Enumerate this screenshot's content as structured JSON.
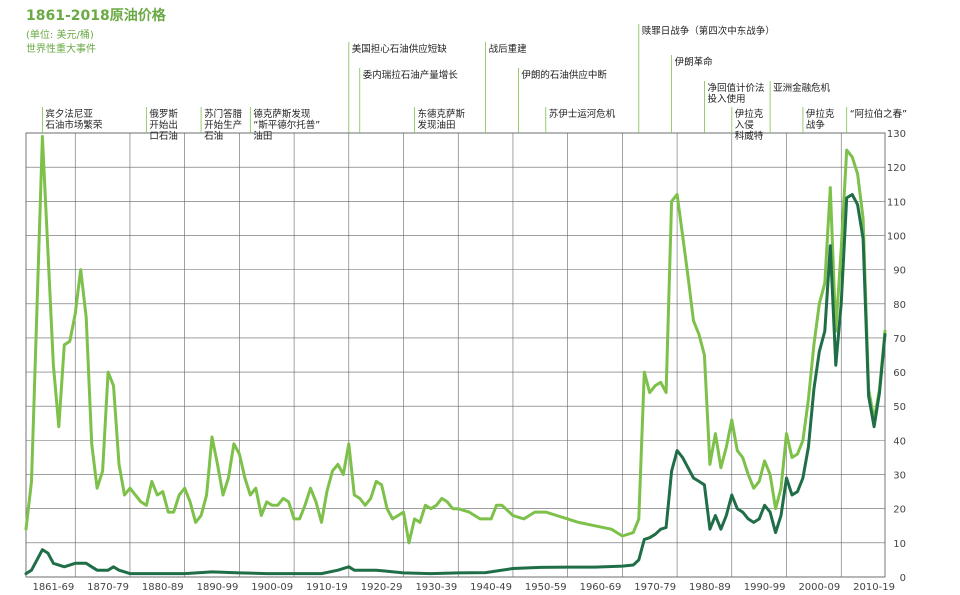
{
  "chart_data": {
    "type": "line",
    "title": "1861-2018原油价格",
    "unit_label": "(单位: 美元/桶)",
    "events_label": "世界性重大事件",
    "xlim": [
      1861,
      2018
    ],
    "ylim": [
      0,
      130
    ],
    "y_ticks": [
      0,
      10,
      20,
      30,
      40,
      50,
      60,
      70,
      80,
      90,
      100,
      110,
      120,
      130
    ],
    "x_tick_labels": [
      "1861-69",
      "1870-79",
      "1880-89",
      "1890-99",
      "1900-09",
      "1910-19",
      "1920-29",
      "1930-39",
      "1940-49",
      "1950-59",
      "1960-69",
      "1970-79",
      "1980-89",
      "1990-99",
      "2000-09",
      "2010-19"
    ],
    "x_tick_positions": [
      1866,
      1876,
      1886,
      1896,
      1906,
      1916,
      1926,
      1936,
      1946,
      1956,
      1966,
      1976,
      1986,
      1996,
      2006,
      2016
    ],
    "grid": true,
    "series": [
      {
        "color": "#7dc14a",
        "values": [
          [
            1861,
            14
          ],
          [
            1862,
            28
          ],
          [
            1864,
            129
          ],
          [
            1866,
            62
          ],
          [
            1867,
            44
          ],
          [
            1868,
            68
          ],
          [
            1869,
            69
          ],
          [
            1870,
            77
          ],
          [
            1871,
            90
          ],
          [
            1872,
            76
          ],
          [
            1873,
            39
          ],
          [
            1874,
            26
          ],
          [
            1875,
            31
          ],
          [
            1876,
            60
          ],
          [
            1877,
            56
          ],
          [
            1878,
            33
          ],
          [
            1879,
            24
          ],
          [
            1880,
            26
          ],
          [
            1882,
            22
          ],
          [
            1883,
            21
          ],
          [
            1884,
            28
          ],
          [
            1885,
            24
          ],
          [
            1886,
            25
          ],
          [
            1887,
            19
          ],
          [
            1888,
            19
          ],
          [
            1889,
            24
          ],
          [
            1890,
            26
          ],
          [
            1891,
            22
          ],
          [
            1892,
            16
          ],
          [
            1893,
            18
          ],
          [
            1894,
            24
          ],
          [
            1895,
            41
          ],
          [
            1896,
            33
          ],
          [
            1897,
            24
          ],
          [
            1898,
            29
          ],
          [
            1899,
            39
          ],
          [
            1900,
            36
          ],
          [
            1901,
            29
          ],
          [
            1902,
            24
          ],
          [
            1903,
            26
          ],
          [
            1904,
            18
          ],
          [
            1905,
            22
          ],
          [
            1906,
            21
          ],
          [
            1907,
            21
          ],
          [
            1908,
            23
          ],
          [
            1909,
            22
          ],
          [
            1910,
            17
          ],
          [
            1911,
            17
          ],
          [
            1912,
            21
          ],
          [
            1913,
            26
          ],
          [
            1914,
            22
          ],
          [
            1915,
            16
          ],
          [
            1916,
            25
          ],
          [
            1917,
            31
          ],
          [
            1918,
            33
          ],
          [
            1919,
            30
          ],
          [
            1920,
            39
          ],
          [
            1921,
            24
          ],
          [
            1922,
            23
          ],
          [
            1923,
            21
          ],
          [
            1924,
            23
          ],
          [
            1925,
            28
          ],
          [
            1926,
            27
          ],
          [
            1927,
            20
          ],
          [
            1928,
            17
          ],
          [
            1929,
            18
          ],
          [
            1930,
            19
          ],
          [
            1931,
            10
          ],
          [
            1932,
            17
          ],
          [
            1933,
            16
          ],
          [
            1934,
            21
          ],
          [
            1935,
            20
          ],
          [
            1936,
            21
          ],
          [
            1937,
            23
          ],
          [
            1938,
            22
          ],
          [
            1939,
            20
          ],
          [
            1940,
            20
          ],
          [
            1942,
            19
          ],
          [
            1944,
            17
          ],
          [
            1945,
            17
          ],
          [
            1946,
            17
          ],
          [
            1947,
            21
          ],
          [
            1948,
            21
          ],
          [
            1950,
            18
          ],
          [
            1952,
            17
          ],
          [
            1954,
            19
          ],
          [
            1956,
            19
          ],
          [
            1958,
            18
          ],
          [
            1960,
            17
          ],
          [
            1962,
            16
          ],
          [
            1965,
            15
          ],
          [
            1968,
            14
          ],
          [
            1970,
            12
          ],
          [
            1972,
            13
          ],
          [
            1973,
            17
          ],
          [
            1974,
            60
          ],
          [
            1975,
            54
          ],
          [
            1976,
            56
          ],
          [
            1977,
            57
          ],
          [
            1978,
            54
          ],
          [
            1979,
            110
          ],
          [
            1980,
            112
          ],
          [
            1981,
            100
          ],
          [
            1982,
            88
          ],
          [
            1983,
            75
          ],
          [
            1984,
            71
          ],
          [
            1985,
            65
          ],
          [
            1986,
            33
          ],
          [
            1987,
            42
          ],
          [
            1988,
            32
          ],
          [
            1989,
            38
          ],
          [
            1990,
            46
          ],
          [
            1991,
            37
          ],
          [
            1992,
            35
          ],
          [
            1993,
            30
          ],
          [
            1994,
            26
          ],
          [
            1995,
            28
          ],
          [
            1996,
            34
          ],
          [
            1997,
            30
          ],
          [
            1998,
            20
          ],
          [
            1999,
            26
          ],
          [
            2000,
            42
          ],
          [
            2001,
            35
          ],
          [
            2002,
            36
          ],
          [
            2003,
            40
          ],
          [
            2004,
            52
          ],
          [
            2005,
            68
          ],
          [
            2006,
            80
          ],
          [
            2007,
            86
          ],
          [
            2008,
            114
          ],
          [
            2009,
            72
          ],
          [
            2010,
            96
          ],
          [
            2011,
            125
          ],
          [
            2012,
            123
          ],
          [
            2013,
            118
          ],
          [
            2014,
            105
          ],
          [
            2015,
            55
          ],
          [
            2016,
            46
          ],
          [
            2017,
            55
          ],
          [
            2018,
            72
          ]
        ]
      },
      {
        "color": "#1f6e47",
        "values": [
          [
            1861,
            1
          ],
          [
            1862,
            2
          ],
          [
            1864,
            8
          ],
          [
            1865,
            7
          ],
          [
            1866,
            4
          ],
          [
            1868,
            3
          ],
          [
            1870,
            4
          ],
          [
            1872,
            4
          ],
          [
            1873,
            3
          ],
          [
            1874,
            2
          ],
          [
            1876,
            2
          ],
          [
            1877,
            3
          ],
          [
            1878,
            2
          ],
          [
            1880,
            1
          ],
          [
            1885,
            1
          ],
          [
            1890,
            1
          ],
          [
            1895,
            1.5
          ],
          [
            1900,
            1.2
          ],
          [
            1905,
            1
          ],
          [
            1910,
            1
          ],
          [
            1915,
            1
          ],
          [
            1918,
            2
          ],
          [
            1920,
            3
          ],
          [
            1921,
            2
          ],
          [
            1925,
            2
          ],
          [
            1930,
            1.2
          ],
          [
            1935,
            1
          ],
          [
            1940,
            1.2
          ],
          [
            1945,
            1.3
          ],
          [
            1950,
            2.5
          ],
          [
            1955,
            2.8
          ],
          [
            1960,
            2.9
          ],
          [
            1965,
            2.9
          ],
          [
            1970,
            3.2
          ],
          [
            1972,
            3.5
          ],
          [
            1973,
            5
          ],
          [
            1974,
            11
          ],
          [
            1975,
            11.5
          ],
          [
            1976,
            12.5
          ],
          [
            1977,
            14
          ],
          [
            1978,
            14.5
          ],
          [
            1979,
            31
          ],
          [
            1980,
            37
          ],
          [
            1981,
            35
          ],
          [
            1982,
            32
          ],
          [
            1983,
            29
          ],
          [
            1984,
            28
          ],
          [
            1985,
            27
          ],
          [
            1986,
            14
          ],
          [
            1987,
            18
          ],
          [
            1988,
            14
          ],
          [
            1989,
            18
          ],
          [
            1990,
            24
          ],
          [
            1991,
            20
          ],
          [
            1992,
            19
          ],
          [
            1993,
            17
          ],
          [
            1994,
            16
          ],
          [
            1995,
            17
          ],
          [
            1996,
            21
          ],
          [
            1997,
            19
          ],
          [
            1998,
            13
          ],
          [
            1999,
            18
          ],
          [
            2000,
            29
          ],
          [
            2001,
            24
          ],
          [
            2002,
            25
          ],
          [
            2003,
            29
          ],
          [
            2004,
            38
          ],
          [
            2005,
            55
          ],
          [
            2006,
            66
          ],
          [
            2007,
            72
          ],
          [
            2008,
            97
          ],
          [
            2009,
            62
          ],
          [
            2010,
            80
          ],
          [
            2011,
            111
          ],
          [
            2012,
            112
          ],
          [
            2013,
            109
          ],
          [
            2014,
            99
          ],
          [
            2015,
            53
          ],
          [
            2016,
            44
          ],
          [
            2017,
            54
          ],
          [
            2018,
            71
          ]
        ]
      }
    ],
    "events": [
      {
        "year": 1864,
        "lines": [
          "宾夕法尼亚",
          "石油市场繁荣"
        ],
        "row": 5
      },
      {
        "year": 1883,
        "lines": [
          "俄罗斯",
          "开始出",
          "口石油"
        ],
        "row": 5
      },
      {
        "year": 1893,
        "lines": [
          "苏门答腊",
          "开始生产",
          "石油"
        ],
        "row": 5
      },
      {
        "year": 1902,
        "lines": [
          "德克萨斯发现",
          "“斯平德尔托普”",
          "油田"
        ],
        "row": 5
      },
      {
        "year": 1920,
        "lines": [
          "美国担心石油供应短缺"
        ],
        "row": 0
      },
      {
        "year": 1922,
        "lines": [
          "委内瑞拉石油产量增长"
        ],
        "row": 2
      },
      {
        "year": 1932,
        "lines": [
          "东德克萨斯",
          "发现油田"
        ],
        "row": 5
      },
      {
        "year": 1945,
        "lines": [
          "战后重建"
        ],
        "row": 0
      },
      {
        "year": 1951,
        "lines": [
          "伊朗的石油供应中断"
        ],
        "row": 2
      },
      {
        "year": 1956,
        "lines": [
          "苏伊士运河危机"
        ],
        "row": 5
      },
      {
        "year": 1973,
        "lines": [
          "赎罪日战争（第四次中东战争）"
        ],
        "row": -1
      },
      {
        "year": 1979,
        "lines": [
          "伊朗革命"
        ],
        "row": 1
      },
      {
        "year": 1985,
        "lines": [
          "净回值计价法",
          "投入使用"
        ],
        "row": 3
      },
      {
        "year": 1990,
        "lines": [
          "伊拉克",
          "入侵",
          "科威特"
        ],
        "row": 5
      },
      {
        "year": 1997,
        "lines": [
          "亚洲金融危机"
        ],
        "row": 3
      },
      {
        "year": 2003,
        "lines": [
          "伊拉克",
          "战争"
        ],
        "row": 5
      },
      {
        "year": 2011,
        "lines": [
          "“阿拉伯之春”"
        ],
        "row": 5
      }
    ]
  }
}
